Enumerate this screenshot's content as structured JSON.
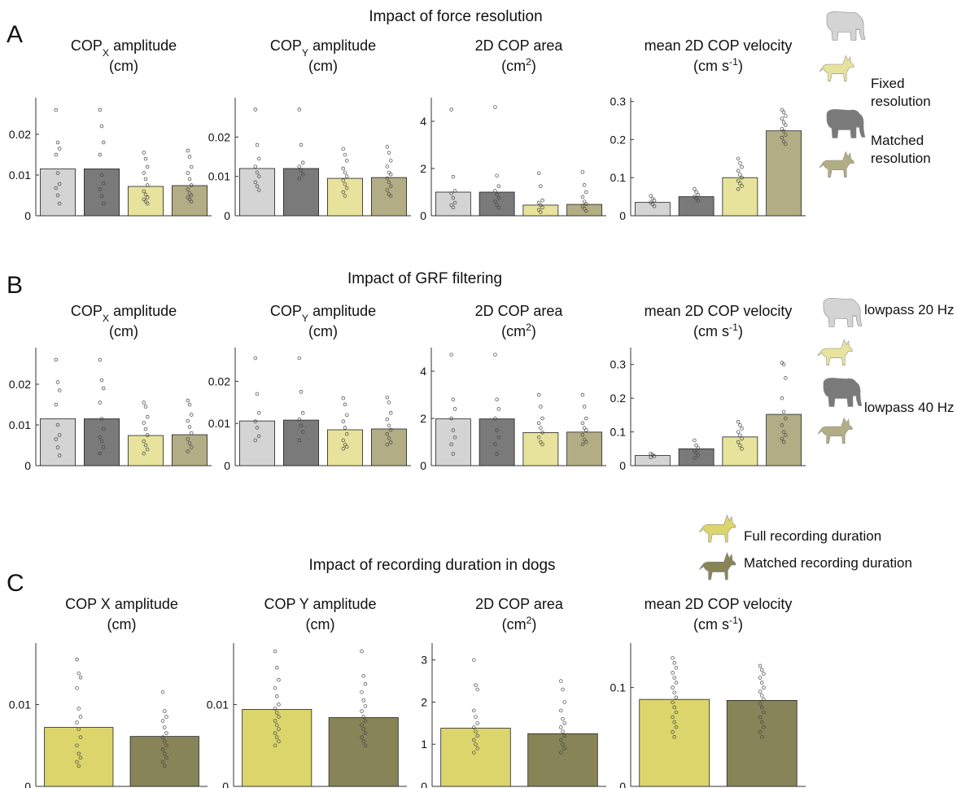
{
  "figure": {
    "panels": [
      {
        "letter": "A",
        "title": "Impact of force resolution",
        "legend": [
          {
            "label_lines": [
              "Fixed",
              "resolution"
            ],
            "icons": [
              "elephant-icon",
              "dog-icon"
            ],
            "colors": [
              "#d4d4d4",
              "#e8e39c"
            ]
          },
          {
            "label_lines": [
              "Matched",
              "resolution"
            ],
            "icons": [
              "elephant-icon",
              "dog-icon"
            ],
            "colors": [
              "#7a7a7a",
              "#b3ad85"
            ]
          }
        ]
      },
      {
        "letter": "B",
        "title": "Impact of GRF filtering",
        "legend": [
          {
            "label_lines": [
              "lowpass 20 Hz"
            ],
            "icons": [
              "elephant-icon",
              "dog-icon"
            ],
            "colors": [
              "#d4d4d4",
              "#e8e39c"
            ]
          },
          {
            "label_lines": [
              "lowpass 40 Hz"
            ],
            "icons": [
              "elephant-icon",
              "dog-icon"
            ],
            "colors": [
              "#7a7a7a",
              "#b3ad85"
            ]
          }
        ]
      },
      {
        "letter": "C",
        "title": "Impact of recording duration in dogs",
        "legend": [
          {
            "label_lines": [
              "Full recording duration"
            ],
            "icons": [
              "dog-icon"
            ],
            "colors": [
              "#dcd56c"
            ]
          },
          {
            "label_lines": [
              "Matched recording duration"
            ],
            "icons": [
              "dog-icon"
            ],
            "colors": [
              "#878458"
            ]
          }
        ]
      }
    ]
  },
  "chart_data": [
    {
      "panel": "A",
      "type": "bar",
      "title_lines": [
        [
          {
            "t": "COP"
          },
          {
            "t": "X",
            "sub": true
          },
          {
            "t": " amplitude"
          }
        ],
        [
          {
            "t": "(cm)"
          }
        ]
      ],
      "categories": [
        "elephant fixed",
        "elephant matched",
        "dog fixed",
        "dog matched"
      ],
      "values": [
        0.0115,
        0.0115,
        0.0072,
        0.0074
      ],
      "ylim": [
        0,
        0.029
      ],
      "yticks": [
        0,
        0.01,
        0.02
      ],
      "tick_labels": [
        "0",
        "0.01",
        "0.02"
      ],
      "bar_colors": [
        "#d4d4d4",
        "#7a7a7a",
        "#e8e39c",
        "#b3ad85"
      ],
      "points": [
        [
          0.026,
          0.018,
          0.0165,
          0.015,
          0.0105,
          0.0078,
          0.0068,
          0.005,
          0.003
        ],
        [
          0.026,
          0.022,
          0.018,
          0.015,
          0.01,
          0.008,
          0.0065,
          0.0048,
          0.003
        ],
        [
          0.0155,
          0.014,
          0.012,
          0.0105,
          0.009,
          0.0075,
          0.006,
          0.0052,
          0.0045,
          0.004,
          0.0035,
          0.003
        ],
        [
          0.016,
          0.0145,
          0.012,
          0.0105,
          0.009,
          0.0075,
          0.0065,
          0.0055,
          0.005,
          0.0045,
          0.004,
          0.0035
        ]
      ]
    },
    {
      "panel": "A",
      "type": "bar",
      "title_lines": [
        [
          {
            "t": "COP"
          },
          {
            "t": "Y",
            "sub": true
          },
          {
            "t": " amplitude"
          }
        ],
        [
          {
            "t": "(cm)"
          }
        ]
      ],
      "categories": [
        "elephant fixed",
        "elephant matched",
        "dog fixed",
        "dog matched"
      ],
      "values": [
        0.012,
        0.012,
        0.0095,
        0.0097
      ],
      "ylim": [
        0,
        0.03
      ],
      "yticks": [
        0,
        0.01,
        0.02
      ],
      "tick_labels": [
        "0",
        "0.01",
        "0.02"
      ],
      "bar_colors": [
        "#d4d4d4",
        "#7a7a7a",
        "#e8e39c",
        "#b3ad85"
      ],
      "points": [
        [
          0.027,
          0.018,
          0.0145,
          0.0125,
          0.011,
          0.01,
          0.0085,
          0.0075,
          0.0065
        ],
        [
          0.027,
          0.018,
          0.0135,
          0.0125,
          0.0115,
          0.0105,
          0.0095
        ],
        [
          0.017,
          0.0155,
          0.014,
          0.012,
          0.011,
          0.01,
          0.009,
          0.008,
          0.007,
          0.006,
          0.005
        ],
        [
          0.0175,
          0.016,
          0.014,
          0.0125,
          0.011,
          0.0105,
          0.0095,
          0.0085,
          0.0075,
          0.0065,
          0.0055,
          0.005
        ]
      ]
    },
    {
      "panel": "A",
      "type": "bar",
      "title_lines": [
        [
          {
            "t": "2D COP area"
          }
        ],
        [
          {
            "t": "(cm"
          },
          {
            "t": "2",
            "sup": true
          },
          {
            "t": ")"
          }
        ]
      ],
      "categories": [
        "elephant fixed",
        "elephant matched",
        "dog fixed",
        "dog matched"
      ],
      "values": [
        1.0,
        1.0,
        0.45,
        0.48
      ],
      "ylim": [
        0,
        5
      ],
      "yticks": [
        0,
        2,
        4
      ],
      "tick_labels": [
        "0",
        "2",
        "4"
      ],
      "bar_colors": [
        "#d4d4d4",
        "#7a7a7a",
        "#e8e39c",
        "#b3ad85"
      ],
      "points": [
        [
          4.5,
          1.65,
          1.05,
          0.95,
          0.75,
          0.55,
          0.45,
          0.35
        ],
        [
          4.6,
          1.7,
          1.25,
          1.05,
          0.9,
          0.75,
          0.6,
          0.45,
          0.35
        ],
        [
          1.8,
          1.25,
          0.65,
          0.55,
          0.45,
          0.35,
          0.25,
          0.15
        ],
        [
          1.85,
          1.3,
          1.0,
          0.8,
          0.6,
          0.5,
          0.4,
          0.3,
          0.2
        ]
      ]
    },
    {
      "panel": "A",
      "type": "bar",
      "title_lines": [
        [
          {
            "t": "mean  2D COP velocity"
          }
        ],
        [
          {
            "t": "(cm s"
          },
          {
            "t": "-1",
            "sup": true
          },
          {
            "t": ")"
          }
        ]
      ],
      "categories": [
        "elephant fixed",
        "elephant matched",
        "dog fixed",
        "dog matched"
      ],
      "values": [
        0.035,
        0.05,
        0.1,
        0.223
      ],
      "ylim": [
        0,
        0.31
      ],
      "yticks": [
        0,
        0.1,
        0.2,
        0.3
      ],
      "tick_labels": [
        "0",
        "0.1",
        "0.2",
        "0.3"
      ],
      "bar_colors": [
        "#d4d4d4",
        "#7a7a7a",
        "#e8e39c",
        "#b3ad85"
      ],
      "points": [
        [
          0.052,
          0.045,
          0.04,
          0.035,
          0.03,
          0.025
        ],
        [
          0.07,
          0.062,
          0.055,
          0.05,
          0.045,
          0.04
        ],
        [
          0.15,
          0.138,
          0.128,
          0.118,
          0.108,
          0.1,
          0.092,
          0.085,
          0.078,
          0.07
        ],
        [
          0.278,
          0.272,
          0.262,
          0.255,
          0.245,
          0.238,
          0.228,
          0.222,
          0.212,
          0.205,
          0.195,
          0.188
        ]
      ]
    },
    {
      "panel": "B",
      "type": "bar",
      "title_lines": [
        [
          {
            "t": "COP"
          },
          {
            "t": "X",
            "sub": true
          },
          {
            "t": " amplitude"
          }
        ],
        [
          {
            "t": "(cm)"
          }
        ]
      ],
      "categories": [
        "elephant 20 Hz",
        "elephant 40 Hz",
        "dog 20 Hz",
        "dog 40 Hz"
      ],
      "values": [
        0.0115,
        0.0115,
        0.0074,
        0.0076
      ],
      "ylim": [
        0,
        0.029
      ],
      "yticks": [
        0,
        0.01,
        0.02
      ],
      "tick_labels": [
        "0",
        "0.01",
        "0.02"
      ],
      "bar_colors": [
        "#d4d4d4",
        "#7a7a7a",
        "#e8e39c",
        "#b3ad85"
      ],
      "points": [
        [
          0.026,
          0.0205,
          0.0185,
          0.015,
          0.01,
          0.0075,
          0.0065,
          0.0045,
          0.0025
        ],
        [
          0.026,
          0.021,
          0.019,
          0.0155,
          0.0115,
          0.009,
          0.007,
          0.006,
          0.0045,
          0.003
        ],
        [
          0.0155,
          0.0145,
          0.012,
          0.0105,
          0.009,
          0.0075,
          0.006,
          0.005,
          0.004,
          0.003
        ],
        [
          0.016,
          0.015,
          0.0125,
          0.011,
          0.0095,
          0.008,
          0.0065,
          0.0055,
          0.0045,
          0.0035
        ]
      ]
    },
    {
      "panel": "B",
      "type": "bar",
      "title_lines": [
        [
          {
            "t": "COP"
          },
          {
            "t": "Y",
            "sub": true
          },
          {
            "t": " amplitude"
          }
        ],
        [
          {
            "t": "(cm)"
          }
        ]
      ],
      "categories": [
        "elephant 20 Hz",
        "elephant 40 Hz",
        "dog 20 Hz",
        "dog 40 Hz"
      ],
      "values": [
        0.0106,
        0.0108,
        0.0085,
        0.0087
      ],
      "ylim": [
        0,
        0.028
      ],
      "yticks": [
        0,
        0.01,
        0.02
      ],
      "tick_labels": [
        "0",
        "0.01",
        "0.02"
      ],
      "bar_colors": [
        "#d4d4d4",
        "#7a7a7a",
        "#e8e39c",
        "#b3ad85"
      ],
      "points": [
        [
          0.0255,
          0.017,
          0.0125,
          0.0105,
          0.009,
          0.007,
          0.006
        ],
        [
          0.0255,
          0.0175,
          0.0125,
          0.011,
          0.0095,
          0.008,
          0.006
        ],
        [
          0.016,
          0.0145,
          0.012,
          0.0105,
          0.009,
          0.0075,
          0.006,
          0.005,
          0.0045,
          0.004
        ],
        [
          0.0162,
          0.015,
          0.0125,
          0.011,
          0.0095,
          0.0085,
          0.0075,
          0.0065,
          0.0055,
          0.005
        ]
      ]
    },
    {
      "panel": "B",
      "type": "bar",
      "title_lines": [
        [
          {
            "t": "2D COP area"
          }
        ],
        [
          {
            "t": "(cm"
          },
          {
            "t": "2",
            "sup": true
          },
          {
            "t": ")"
          }
        ]
      ],
      "categories": [
        "elephant 20 Hz",
        "elephant 40 Hz",
        "dog 20 Hz",
        "dog 40 Hz"
      ],
      "values": [
        1.98,
        1.98,
        1.4,
        1.42
      ],
      "ylim": [
        0,
        5
      ],
      "yticks": [
        0,
        2,
        4
      ],
      "tick_labels": [
        "0",
        "2",
        "4"
      ],
      "bar_colors": [
        "#d4d4d4",
        "#7a7a7a",
        "#e8e39c",
        "#b3ad85"
      ],
      "points": [
        [
          4.7,
          2.8,
          2.4,
          2.0,
          1.5,
          1.2,
          0.9,
          0.5
        ],
        [
          4.7,
          2.8,
          2.4,
          2.0,
          1.5,
          1.2,
          0.9,
          0.5
        ],
        [
          3.0,
          2.5,
          2.0,
          1.8,
          1.6,
          1.4,
          1.2,
          1.0,
          0.9
        ],
        [
          3.0,
          2.5,
          2.0,
          1.8,
          1.6,
          1.5,
          1.3,
          1.1,
          1.0,
          0.9
        ]
      ]
    },
    {
      "panel": "B",
      "type": "bar",
      "title_lines": [
        [
          {
            "t": "mean  2D COP velocity"
          }
        ],
        [
          {
            "t": "(cm s"
          },
          {
            "t": "-1",
            "sup": true
          },
          {
            "t": ")"
          }
        ]
      ],
      "categories": [
        "elephant 20 Hz",
        "elephant 40 Hz",
        "dog 20 Hz",
        "dog 40 Hz"
      ],
      "values": [
        0.03,
        0.05,
        0.085,
        0.152
      ],
      "ylim": [
        0,
        0.35
      ],
      "yticks": [
        0,
        0.1,
        0.2,
        0.3
      ],
      "tick_labels": [
        "0",
        "0.1",
        "0.2",
        "0.3"
      ],
      "bar_colors": [
        "#d4d4d4",
        "#7a7a7a",
        "#e8e39c",
        "#b3ad85"
      ],
      "points": [
        [
          0.035,
          0.032,
          0.028,
          0.025
        ],
        [
          0.075,
          0.06,
          0.052,
          0.045,
          0.038,
          0.03,
          0.022
        ],
        [
          0.13,
          0.12,
          0.11,
          0.1,
          0.09,
          0.08,
          0.07,
          0.06,
          0.05
        ],
        [
          0.305,
          0.3,
          0.26,
          0.2,
          0.16,
          0.14,
          0.12,
          0.1,
          0.09,
          0.08,
          0.07
        ]
      ]
    },
    {
      "panel": "C",
      "type": "bar",
      "title_lines": [
        [
          {
            "t": "COP X amplitude"
          }
        ],
        [
          {
            "t": "(cm)"
          }
        ]
      ],
      "categories": [
        "full duration",
        "matched duration"
      ],
      "values": [
        0.0072,
        0.0061
      ],
      "ylim": [
        0,
        0.0175
      ],
      "yticks": [
        0,
        0.01
      ],
      "tick_labels": [
        "0",
        "0.01"
      ],
      "bar_colors": [
        "#dcd56c",
        "#878458"
      ],
      "points": [
        [
          0.0155,
          0.0138,
          0.0133,
          0.012,
          0.0095,
          0.0085,
          0.0078,
          0.007,
          0.006,
          0.005,
          0.004,
          0.0035,
          0.003,
          0.0025
        ],
        [
          0.0115,
          0.0092,
          0.0085,
          0.008,
          0.0072,
          0.0065,
          0.006,
          0.0055,
          0.005,
          0.0045,
          0.004,
          0.0035,
          0.003,
          0.0025
        ]
      ]
    },
    {
      "panel": "C",
      "type": "bar",
      "title_lines": [
        [
          {
            "t": "COP Y amplitude"
          }
        ],
        [
          {
            "t": "(cm)"
          }
        ]
      ],
      "categories": [
        "full duration",
        "matched duration"
      ],
      "values": [
        0.0094,
        0.0084
      ],
      "ylim": [
        0,
        0.0175
      ],
      "yticks": [
        0,
        0.01
      ],
      "tick_labels": [
        "0",
        "0.01"
      ],
      "bar_colors": [
        "#dcd56c",
        "#878458"
      ],
      "points": [
        [
          0.0165,
          0.0145,
          0.013,
          0.012,
          0.011,
          0.01,
          0.0095,
          0.009,
          0.0085,
          0.008,
          0.0075,
          0.007,
          0.0065,
          0.006,
          0.0055,
          0.005
        ],
        [
          0.0165,
          0.0135,
          0.0125,
          0.0115,
          0.0105,
          0.0098,
          0.0092,
          0.0085,
          0.008,
          0.0075,
          0.007,
          0.0065,
          0.006,
          0.0055,
          0.005
        ]
      ]
    },
    {
      "panel": "C",
      "type": "bar",
      "title_lines": [
        [
          {
            "t": "2D COP area"
          }
        ],
        [
          {
            "t": "(cm"
          },
          {
            "t": "2",
            "sup": true
          },
          {
            "t": ")"
          }
        ]
      ],
      "categories": [
        "full duration",
        "matched duration"
      ],
      "values": [
        1.38,
        1.25
      ],
      "ylim": [
        0,
        3.4
      ],
      "yticks": [
        0,
        1,
        2,
        3
      ],
      "tick_labels": [
        "0",
        "1",
        "2",
        "3"
      ],
      "bar_colors": [
        "#dcd56c",
        "#878458"
      ],
      "points": [
        [
          3.0,
          2.4,
          2.3,
          1.8,
          1.65,
          1.5,
          1.4,
          1.3,
          1.2,
          1.1,
          1.0,
          0.9,
          0.8
        ],
        [
          2.5,
          2.3,
          2.0,
          1.8,
          1.6,
          1.5,
          1.4,
          1.3,
          1.2,
          1.1,
          1.0,
          0.9,
          0.8
        ]
      ]
    },
    {
      "panel": "C",
      "type": "bar",
      "title_lines": [
        [
          {
            "t": "mean  2D COP velocity"
          }
        ],
        [
          {
            "t": "(cm s"
          },
          {
            "t": "-1",
            "sup": true
          },
          {
            "t": ")"
          }
        ]
      ],
      "categories": [
        "full duration",
        "matched duration"
      ],
      "values": [
        0.088,
        0.087
      ],
      "ylim": [
        0,
        0.145
      ],
      "yticks": [
        0,
        0.1
      ],
      "tick_labels": [
        "0",
        "0.1"
      ],
      "bar_colors": [
        "#dcd56c",
        "#878458"
      ],
      "points": [
        [
          0.13,
          0.125,
          0.12,
          0.115,
          0.11,
          0.105,
          0.1,
          0.095,
          0.09,
          0.085,
          0.08,
          0.075,
          0.07,
          0.065,
          0.06,
          0.055,
          0.05
        ],
        [
          0.122,
          0.118,
          0.114,
          0.11,
          0.105,
          0.1,
          0.096,
          0.092,
          0.088,
          0.084,
          0.08,
          0.075,
          0.07,
          0.065,
          0.06,
          0.055,
          0.05
        ]
      ]
    }
  ]
}
